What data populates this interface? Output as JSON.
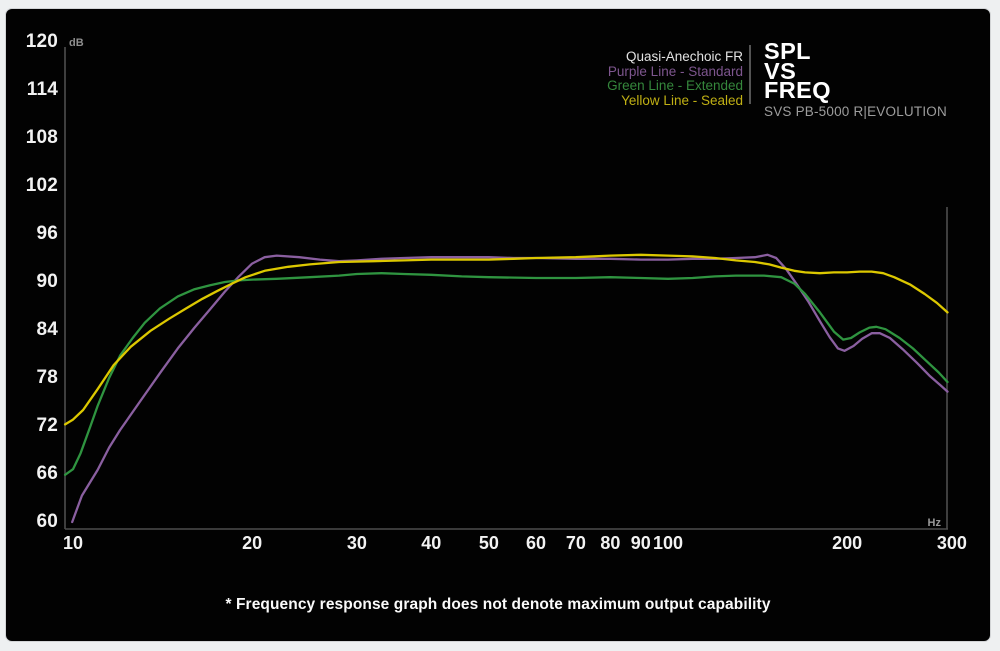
{
  "legend": {
    "items": [
      {
        "label": "Quasi-Anechoic FR",
        "color": "#e2e2e2"
      },
      {
        "label": "Purple Line - Standard",
        "color": "#7e568f"
      },
      {
        "label": "Green Line - Extended",
        "color": "#35873c"
      },
      {
        "label": "Yellow Line - Sealed",
        "color": "#c0b014"
      }
    ]
  },
  "title_block": {
    "lines": [
      "SPL",
      "VS",
      "FREQ"
    ],
    "subtitle": "SVS PB-5000 R|EVOLUTION"
  },
  "footnote": "* Frequency response graph does not denote maximum output capability",
  "chart_data": {
    "type": "line",
    "title": "SPL vs Frequency - Quasi-Anechoic Frequency Response",
    "xlabel": "Hz",
    "ylabel": "dB",
    "x_scale": "log",
    "xlim": [
      10,
      300
    ],
    "ylim": [
      60,
      120
    ],
    "grid": false,
    "y_ticks": [
      120,
      114,
      108,
      102,
      96,
      90,
      84,
      78,
      72,
      66,
      60
    ],
    "x_ticks": [
      10,
      20,
      30,
      40,
      50,
      60,
      70,
      80,
      90,
      100,
      200,
      300
    ],
    "series": [
      {
        "name": "Purple Line - Standard",
        "color": "#8a5fa0",
        "points": [
          [
            9.97,
            60.0
          ],
          [
            10.35,
            63.3
          ],
          [
            11,
            66.5
          ],
          [
            11.5,
            69.3
          ],
          [
            12,
            71.5
          ],
          [
            13,
            75.2
          ],
          [
            14,
            78.6
          ],
          [
            15,
            81.7
          ],
          [
            16,
            84.3
          ],
          [
            17,
            86.6
          ],
          [
            18,
            88.8
          ],
          [
            19,
            90.7
          ],
          [
            20,
            92.3
          ],
          [
            21,
            93.1
          ],
          [
            22,
            93.3
          ],
          [
            24,
            93.1
          ],
          [
            26,
            92.8
          ],
          [
            28,
            92.6
          ],
          [
            30,
            92.7
          ],
          [
            33,
            92.9
          ],
          [
            36,
            93.0
          ],
          [
            40,
            93.1
          ],
          [
            45,
            93.1
          ],
          [
            50,
            93.1
          ],
          [
            55,
            93.0
          ],
          [
            60,
            93.0
          ],
          [
            70,
            92.9
          ],
          [
            80,
            92.9
          ],
          [
            90,
            92.8
          ],
          [
            100,
            92.8
          ],
          [
            110,
            92.9
          ],
          [
            120,
            92.9
          ],
          [
            130,
            93.0
          ],
          [
            140,
            93.1
          ],
          [
            147,
            93.4
          ],
          [
            152,
            93.0
          ],
          [
            158,
            91.6
          ],
          [
            165,
            89.6
          ],
          [
            172,
            87.6
          ],
          [
            180,
            85.1
          ],
          [
            187,
            83.1
          ],
          [
            193,
            81.7
          ],
          [
            198,
            81.4
          ],
          [
            205,
            82.0
          ],
          [
            212,
            82.9
          ],
          [
            220,
            83.6
          ],
          [
            227,
            83.6
          ],
          [
            236,
            83.0
          ],
          [
            248,
            81.6
          ],
          [
            262,
            79.9
          ],
          [
            275,
            78.3
          ],
          [
            288,
            77.0
          ],
          [
            295,
            76.3
          ]
        ]
      },
      {
        "name": "Green Line - Extended",
        "color": "#2f9440",
        "points": [
          [
            9.7,
            65.9
          ],
          [
            10,
            66.6
          ],
          [
            10.3,
            68.6
          ],
          [
            10.7,
            72.0
          ],
          [
            11,
            74.5
          ],
          [
            11.5,
            78.0
          ],
          [
            12,
            80.8
          ],
          [
            12.6,
            83.0
          ],
          [
            13.2,
            84.9
          ],
          [
            14,
            86.7
          ],
          [
            15,
            88.2
          ],
          [
            16,
            89.1
          ],
          [
            17,
            89.6
          ],
          [
            18,
            90.0
          ],
          [
            19,
            90.2
          ],
          [
            20,
            90.3
          ],
          [
            22,
            90.4
          ],
          [
            25,
            90.6
          ],
          [
            28,
            90.8
          ],
          [
            30,
            91.0
          ],
          [
            33,
            91.1
          ],
          [
            36,
            91.0
          ],
          [
            40,
            90.9
          ],
          [
            45,
            90.7
          ],
          [
            50,
            90.6
          ],
          [
            60,
            90.5
          ],
          [
            70,
            90.5
          ],
          [
            80,
            90.6
          ],
          [
            90,
            90.5
          ],
          [
            100,
            90.4
          ],
          [
            110,
            90.5
          ],
          [
            120,
            90.7
          ],
          [
            130,
            90.8
          ],
          [
            145,
            90.8
          ],
          [
            155,
            90.6
          ],
          [
            163,
            89.8
          ],
          [
            170,
            88.5
          ],
          [
            180,
            86.2
          ],
          [
            190,
            83.8
          ],
          [
            197,
            82.8
          ],
          [
            203,
            83.0
          ],
          [
            210,
            83.7
          ],
          [
            218,
            84.3
          ],
          [
            224,
            84.4
          ],
          [
            232,
            84.1
          ],
          [
            245,
            83.0
          ],
          [
            258,
            81.7
          ],
          [
            272,
            80.1
          ],
          [
            285,
            78.7
          ],
          [
            295,
            77.5
          ]
        ]
      },
      {
        "name": "Yellow Line - Sealed",
        "color": "#dcc800",
        "points": [
          [
            9.7,
            72.2
          ],
          [
            10,
            72.8
          ],
          [
            10.4,
            74.0
          ],
          [
            11,
            76.6
          ],
          [
            11.7,
            79.6
          ],
          [
            12.5,
            81.9
          ],
          [
            13.5,
            83.9
          ],
          [
            14.5,
            85.4
          ],
          [
            15.5,
            86.7
          ],
          [
            16.5,
            87.9
          ],
          [
            17.5,
            88.9
          ],
          [
            18.5,
            89.8
          ],
          [
            19.5,
            90.6
          ],
          [
            21,
            91.4
          ],
          [
            23,
            91.9
          ],
          [
            25,
            92.2
          ],
          [
            28,
            92.5
          ],
          [
            32,
            92.6
          ],
          [
            36,
            92.7
          ],
          [
            40,
            92.8
          ],
          [
            45,
            92.8
          ],
          [
            50,
            92.8
          ],
          [
            55,
            92.9
          ],
          [
            60,
            93.0
          ],
          [
            70,
            93.1
          ],
          [
            80,
            93.3
          ],
          [
            90,
            93.4
          ],
          [
            100,
            93.3
          ],
          [
            110,
            93.2
          ],
          [
            120,
            93.0
          ],
          [
            130,
            92.7
          ],
          [
            140,
            92.5
          ],
          [
            148,
            92.2
          ],
          [
            155,
            91.8
          ],
          [
            163,
            91.4
          ],
          [
            170,
            91.2
          ],
          [
            180,
            91.1
          ],
          [
            190,
            91.2
          ],
          [
            200,
            91.2
          ],
          [
            210,
            91.3
          ],
          [
            220,
            91.3
          ],
          [
            230,
            91.1
          ],
          [
            240,
            90.6
          ],
          [
            255,
            89.7
          ],
          [
            270,
            88.5
          ],
          [
            283,
            87.4
          ],
          [
            295,
            86.2
          ]
        ]
      }
    ]
  }
}
